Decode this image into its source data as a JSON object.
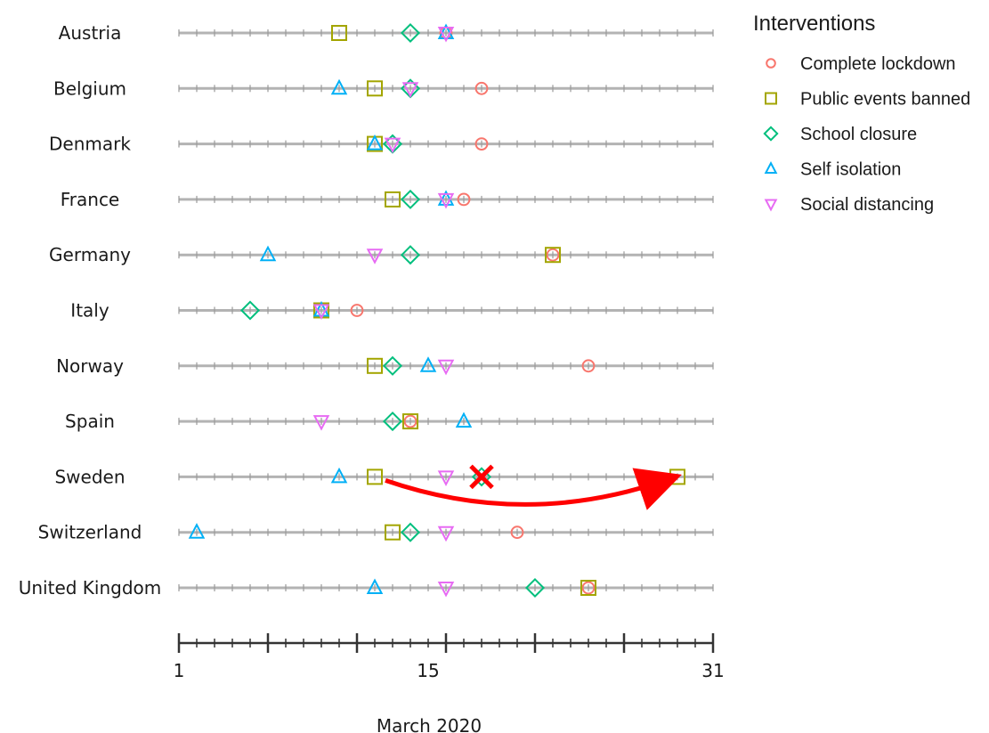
{
  "chart_data": {
    "type": "scatter",
    "xlabel": "March 2020",
    "xlim": [
      1,
      31
    ],
    "x_ticks": [
      1,
      15,
      31
    ],
    "countries": [
      "Austria",
      "Belgium",
      "Denmark",
      "France",
      "Germany",
      "Italy",
      "Norway",
      "Spain",
      "Sweden",
      "Switzerland",
      "United Kingdom"
    ],
    "legend": {
      "title": "Interventions",
      "position": "top-right"
    },
    "series": [
      {
        "name": "Complete lockdown",
        "marker": "circle",
        "color": "#F8766D",
        "points": [
          {
            "country": "Austria",
            "day": 16
          },
          {
            "country": "Belgium",
            "day": 18
          },
          {
            "country": "Denmark",
            "day": 18
          },
          {
            "country": "France",
            "day": 17
          },
          {
            "country": "Germany",
            "day": 22
          },
          {
            "country": "Italy",
            "day": 11
          },
          {
            "country": "Norway",
            "day": 24
          },
          {
            "country": "Spain",
            "day": 14
          },
          {
            "country": "Switzerland",
            "day": 20
          },
          {
            "country": "United Kingdom",
            "day": 24
          }
        ]
      },
      {
        "name": "Public events banned",
        "marker": "square",
        "color": "#A3A500",
        "points": [
          {
            "country": "Austria",
            "day": 10
          },
          {
            "country": "Belgium",
            "day": 12
          },
          {
            "country": "Denmark",
            "day": 12
          },
          {
            "country": "France",
            "day": 13
          },
          {
            "country": "Germany",
            "day": 22
          },
          {
            "country": "Italy",
            "day": 9
          },
          {
            "country": "Norway",
            "day": 12
          },
          {
            "country": "Spain",
            "day": 14
          },
          {
            "country": "Sweden",
            "day": 12
          },
          {
            "country": "Sweden",
            "day": 29
          },
          {
            "country": "Switzerland",
            "day": 13
          },
          {
            "country": "United Kingdom",
            "day": 24
          }
        ]
      },
      {
        "name": "School closure",
        "marker": "diamond",
        "color": "#00BF7D",
        "points": [
          {
            "country": "Austria",
            "day": 14
          },
          {
            "country": "Belgium",
            "day": 14
          },
          {
            "country": "Denmark",
            "day": 13
          },
          {
            "country": "France",
            "day": 14
          },
          {
            "country": "Germany",
            "day": 14
          },
          {
            "country": "Italy",
            "day": 5
          },
          {
            "country": "Norway",
            "day": 13
          },
          {
            "country": "Spain",
            "day": 13
          },
          {
            "country": "Sweden",
            "day": 18
          },
          {
            "country": "Switzerland",
            "day": 14
          },
          {
            "country": "United Kingdom",
            "day": 21
          }
        ]
      },
      {
        "name": "Self isolation",
        "marker": "triangle-up",
        "color": "#00B0F6",
        "points": [
          {
            "country": "Austria",
            "day": 16
          },
          {
            "country": "Belgium",
            "day": 10
          },
          {
            "country": "Denmark",
            "day": 12
          },
          {
            "country": "France",
            "day": 16
          },
          {
            "country": "Germany",
            "day": 6
          },
          {
            "country": "Italy",
            "day": 9
          },
          {
            "country": "Norway",
            "day": 15
          },
          {
            "country": "Spain",
            "day": 17
          },
          {
            "country": "Sweden",
            "day": 10
          },
          {
            "country": "Switzerland",
            "day": 2
          },
          {
            "country": "United Kingdom",
            "day": 12
          }
        ]
      },
      {
        "name": "Social distancing",
        "marker": "triangle-down",
        "color": "#E76BF3",
        "points": [
          {
            "country": "Austria",
            "day": 16
          },
          {
            "country": "Belgium",
            "day": 14
          },
          {
            "country": "Denmark",
            "day": 13
          },
          {
            "country": "France",
            "day": 16
          },
          {
            "country": "Germany",
            "day": 12
          },
          {
            "country": "Italy",
            "day": 9
          },
          {
            "country": "Norway",
            "day": 16
          },
          {
            "country": "Spain",
            "day": 9
          },
          {
            "country": "Sweden",
            "day": 16
          },
          {
            "country": "Switzerland",
            "day": 16
          },
          {
            "country": "United Kingdom",
            "day": 16
          }
        ]
      }
    ],
    "annotations": [
      {
        "type": "cross",
        "country": "Sweden",
        "day": 18,
        "color": "#FF0000"
      },
      {
        "type": "arrow",
        "country": "Sweden",
        "from_day": 12.5,
        "to_day": 28.5,
        "color": "#FF0000"
      }
    ]
  }
}
